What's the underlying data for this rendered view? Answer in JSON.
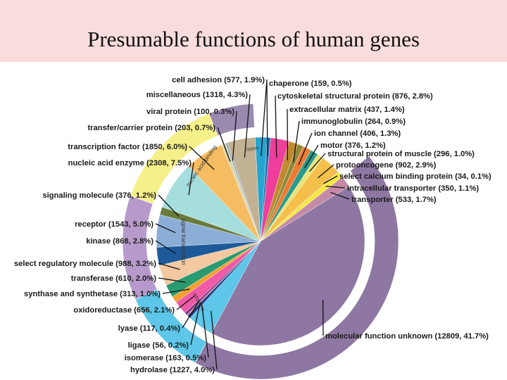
{
  "slide": {
    "title": "Presumable functions of human genes"
  },
  "chart_data": {
    "type": "pie",
    "title": "",
    "slices": [
      {
        "label": "cell adhesion (577, 1.9%)",
        "name": "cell adhesion",
        "count": 577,
        "percent": 1.9,
        "color": "#26a5cf"
      },
      {
        "label": "chaperone (159, 0.5%)",
        "name": "chaperone",
        "count": 159,
        "percent": 0.5,
        "color": "#1e6fb0"
      },
      {
        "label": "cytoskeletal structural protein (876, 2.8%)",
        "name": "cytoskeletal structural protein",
        "count": 876,
        "percent": 2.8,
        "color": "#ee3d9a"
      },
      {
        "label": "extracellular matrix (437, 1.4%)",
        "name": "extracellular matrix",
        "count": 437,
        "percent": 1.4,
        "color": "#c08a2e"
      },
      {
        "label": "immunoglobulin (264, 0.9%)",
        "name": "immunoglobulin",
        "count": 264,
        "percent": 0.9,
        "color": "#8a8a3a"
      },
      {
        "label": "ion channel (406, 1.3%)",
        "name": "ion channel",
        "count": 406,
        "percent": 1.3,
        "color": "#f07a30"
      },
      {
        "label": "motor (376, 1.2%)",
        "name": "motor",
        "count": 376,
        "percent": 1.2,
        "color": "#2a9a8a"
      },
      {
        "label": "structural protein of muscle (296, 1.0%)",
        "name": "structural protein of muscle",
        "count": 296,
        "percent": 1.0,
        "color": "#e8e37a"
      },
      {
        "label": "protooncogene (902, 2.9%)",
        "name": "protooncogene",
        "count": 902,
        "percent": 2.9,
        "color": "#f5c04a"
      },
      {
        "label": "select calcium binding protein (34, 0.1%)",
        "name": "select calcium binding protein",
        "count": 34,
        "percent": 0.1,
        "color": "#d82a2a"
      },
      {
        "label": "intracellular transporter (350, 1.1%)",
        "name": "intracellular transporter",
        "count": 350,
        "percent": 1.1,
        "color": "#f5e845"
      },
      {
        "label": "transporter (533, 1.7%)",
        "name": "transporter",
        "count": 533,
        "percent": 1.7,
        "color": "#c48aa8"
      },
      {
        "label": "molecular function unknown (12809, 41.7%)",
        "name": "molecular function unknown",
        "count": 12809,
        "percent": 41.7,
        "color": "#8e77a2"
      },
      {
        "label": "hydrolase (1227, 4.0%)",
        "name": "hydrolase",
        "count": 1227,
        "percent": 4.0,
        "color": "#5ec6e8"
      },
      {
        "label": "isomerase (163, 0.5%)",
        "name": "isomerase",
        "count": 163,
        "percent": 0.5,
        "color": "#1e3e8a"
      },
      {
        "label": "ligase (56, 0.2%)",
        "name": "ligase",
        "count": 56,
        "percent": 0.2,
        "color": "#e87070"
      },
      {
        "label": "lyase (117, 0.4%)",
        "name": "lyase",
        "count": 117,
        "percent": 0.4,
        "color": "#6a3a8a"
      },
      {
        "label": "oxidoreductase (656, 2.1%)",
        "name": "oxidoreductase",
        "count": 656,
        "percent": 2.1,
        "color": "#ef5ba8"
      },
      {
        "label": "synthase and synthetase (313, 1.0%)",
        "name": "synthase and synthetase",
        "count": 313,
        "percent": 1.0,
        "color": "#f2a030"
      },
      {
        "label": "transferase (610, 2.0%)",
        "name": "transferase",
        "count": 610,
        "percent": 2.0,
        "color": "#2a9a70"
      },
      {
        "label": "select regulatory molecule (988, 3.2%)",
        "name": "select regulatory molecule",
        "count": 988,
        "percent": 3.2,
        "color": "#f4c8a0"
      },
      {
        "label": "kinase (868, 2.8%)",
        "name": "kinase",
        "count": 868,
        "percent": 2.8,
        "color": "#1e5a9a"
      },
      {
        "label": "receptor (1543, 5.0%)",
        "name": "receptor",
        "count": 1543,
        "percent": 5.0,
        "color": "#8aaed6"
      },
      {
        "label": "signaling molecule (376, 1.2%)",
        "name": "signaling molecule",
        "count": 376,
        "percent": 1.2,
        "color": "#6a7a3a"
      },
      {
        "label": "nucleic acid enzyme (2308, 7.5%)",
        "name": "nucleic acid enzyme",
        "count": 2308,
        "percent": 7.5,
        "color": "#a6dede"
      },
      {
        "label": "transcription factor (1850, 6.0%)",
        "name": "transcription factor",
        "count": 1850,
        "percent": 6.0,
        "color": "#f6bc62"
      },
      {
        "label": "transfer/carrier protein (203, 0.7%)",
        "name": "transfer/carrier protein",
        "count": 203,
        "percent": 0.7,
        "color": "#d8d8b0"
      },
      {
        "label": "viral protein (100, 0.3%)",
        "name": "viral protein",
        "count": 100,
        "percent": 0.3,
        "color": "#98a8b8"
      },
      {
        "label": "miscellaneous (1318, 4.3%)",
        "name": "miscellaneous",
        "count": 1318,
        "percent": 4.3,
        "color": "#c2b294"
      }
    ],
    "outer_ring": [
      {
        "label": "none",
        "color": "#9a8ab0"
      },
      {
        "label": "nucleic acid binding",
        "color": "#f5f08a"
      },
      {
        "label": "signal transduction",
        "color": "#b79acb"
      },
      {
        "label": "enzyme",
        "color": "#5ec6e8"
      }
    ]
  }
}
